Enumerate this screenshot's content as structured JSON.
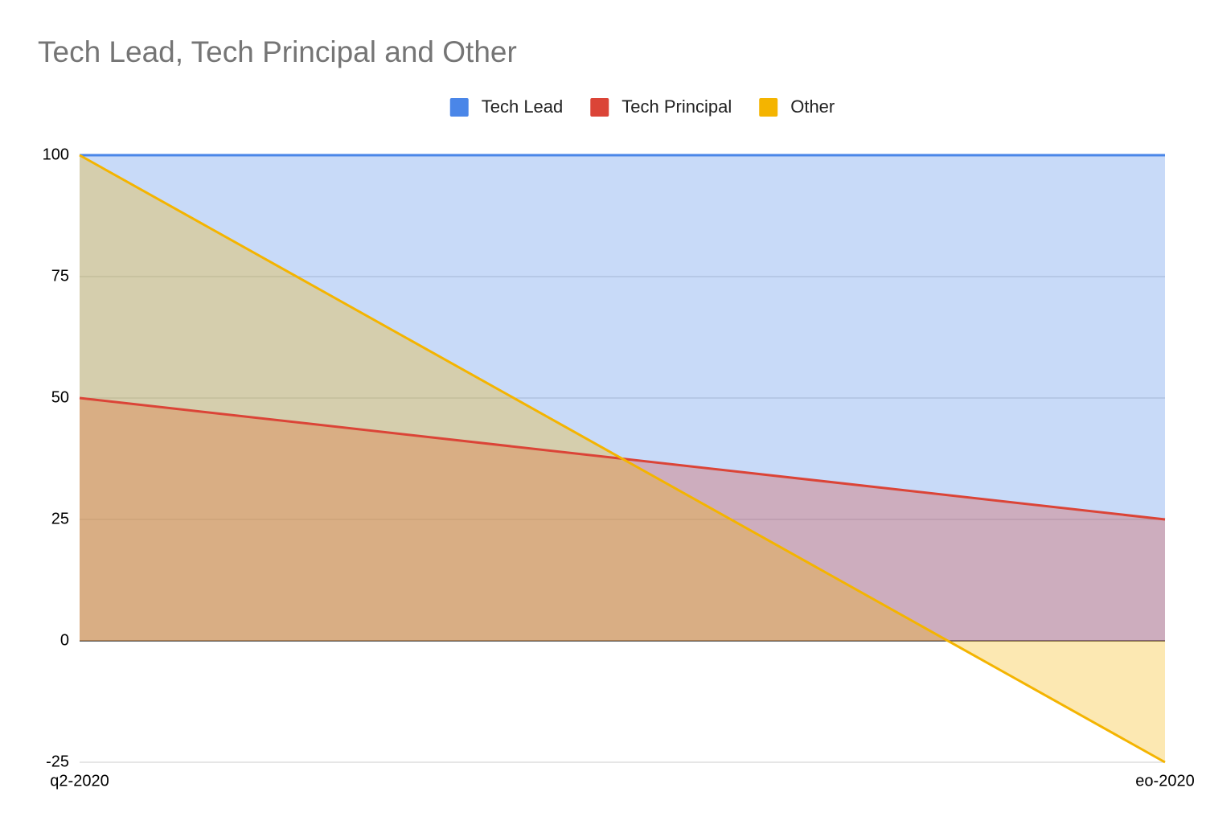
{
  "chart_data": {
    "type": "area",
    "title": "Tech Lead, Tech Principal and Other",
    "categories": [
      "q2-2020",
      "eo-2020"
    ],
    "series": [
      {
        "name": "Tech Lead",
        "color": "#4a86e8",
        "values": [
          100,
          100
        ]
      },
      {
        "name": "Tech Principal",
        "color": "#db4437",
        "values": [
          50,
          25
        ]
      },
      {
        "name": "Other",
        "color": "#f4b400",
        "values": [
          100,
          -25
        ]
      }
    ],
    "ylim": [
      -25,
      100
    ],
    "yticks": [
      -25,
      0,
      25,
      50,
      75,
      100
    ],
    "grid": true,
    "legend": "top"
  }
}
